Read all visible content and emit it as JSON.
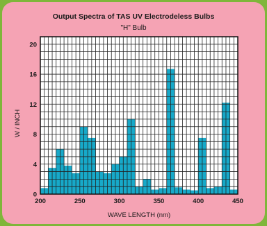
{
  "colors": {
    "background": "#7fb63a",
    "panel": "#f5a3b4",
    "plot_bg": "#ffffff",
    "bars": "#17a9c9",
    "grid": "#222222"
  },
  "chart_data": {
    "type": "bar",
    "title": "Output Spectra of TAS UV Electrodeless Bulbs",
    "subtitle": "\"H\" Bulb",
    "xlabel": "WAVE LENGTH (nm)",
    "ylabel": "W / INCH",
    "xlim": [
      200,
      450
    ],
    "ylim": [
      0,
      21
    ],
    "x_ticks": [
      200,
      250,
      300,
      350,
      400,
      450
    ],
    "y_ticks": [
      0,
      4,
      8,
      12,
      16,
      20
    ],
    "grid": true,
    "bin_width": 10,
    "bins": [
      {
        "x0": 200,
        "x1": 210,
        "value": 0.8
      },
      {
        "x0": 210,
        "x1": 220,
        "value": 3.5
      },
      {
        "x0": 220,
        "x1": 230,
        "value": 6.0
      },
      {
        "x0": 230,
        "x1": 240,
        "value": 3.8
      },
      {
        "x0": 240,
        "x1": 250,
        "value": 2.8
      },
      {
        "x0": 250,
        "x1": 260,
        "value": 9.0
      },
      {
        "x0": 260,
        "x1": 270,
        "value": 7.5
      },
      {
        "x0": 270,
        "x1": 280,
        "value": 3.0
      },
      {
        "x0": 280,
        "x1": 290,
        "value": 2.8
      },
      {
        "x0": 290,
        "x1": 300,
        "value": 4.0
      },
      {
        "x0": 300,
        "x1": 310,
        "value": 5.0
      },
      {
        "x0": 310,
        "x1": 320,
        "value": 10.0
      },
      {
        "x0": 320,
        "x1": 330,
        "value": 1.0
      },
      {
        "x0": 330,
        "x1": 340,
        "value": 2.0
      },
      {
        "x0": 340,
        "x1": 350,
        "value": 0.6
      },
      {
        "x0": 350,
        "x1": 360,
        "value": 0.8
      },
      {
        "x0": 360,
        "x1": 370,
        "value": 16.7
      },
      {
        "x0": 370,
        "x1": 380,
        "value": 0.9
      },
      {
        "x0": 380,
        "x1": 390,
        "value": 0.6
      },
      {
        "x0": 390,
        "x1": 400,
        "value": 0.5
      },
      {
        "x0": 400,
        "x1": 410,
        "value": 7.5
      },
      {
        "x0": 410,
        "x1": 420,
        "value": 0.8
      },
      {
        "x0": 420,
        "x1": 430,
        "value": 1.0
      },
      {
        "x0": 430,
        "x1": 440,
        "value": 12.2
      },
      {
        "x0": 440,
        "x1": 450,
        "value": 0.6
      }
    ]
  }
}
